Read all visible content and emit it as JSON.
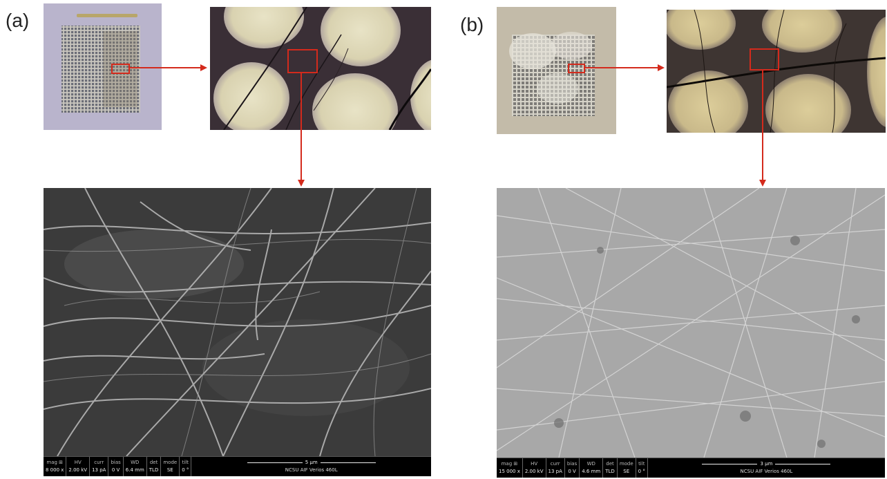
{
  "panels": [
    {
      "label": "(a)",
      "sem": {
        "mag_label": "mag ⊞",
        "mag": "8 000 x",
        "hv_label": "HV",
        "hv": "2.00 kV",
        "curr_label": "curr",
        "curr": "13 pA",
        "bias_label": "bias",
        "bias": "0 V",
        "wd_label": "WD",
        "wd": "6.4 mm",
        "det_label": "det",
        "det": "TLD",
        "mode_label": "mode",
        "mode": "SE",
        "tilt_label": "tilt",
        "tilt": "0 °",
        "scale": "5 µm",
        "instrument": "NCSU AIF Verios 460L"
      }
    },
    {
      "label": "(b)",
      "sem": {
        "mag_label": "mag ⊞",
        "mag": "15 000 x",
        "hv_label": "HV",
        "hv": "2.00 kV",
        "curr_label": "curr",
        "curr": "13 pA",
        "bias_label": "bias",
        "bias": "0 V",
        "wd_label": "WD",
        "wd": "4.6 mm",
        "det_label": "det",
        "det": "TLD",
        "mode_label": "mode",
        "mode": "SE",
        "tilt_label": "tilt",
        "tilt": "0 °",
        "scale": "3 µm",
        "instrument": "NCSU AIF Verios 460L"
      }
    }
  ],
  "colors": {
    "highlight": "#d42a1c",
    "arrow": "#d42a1c"
  }
}
